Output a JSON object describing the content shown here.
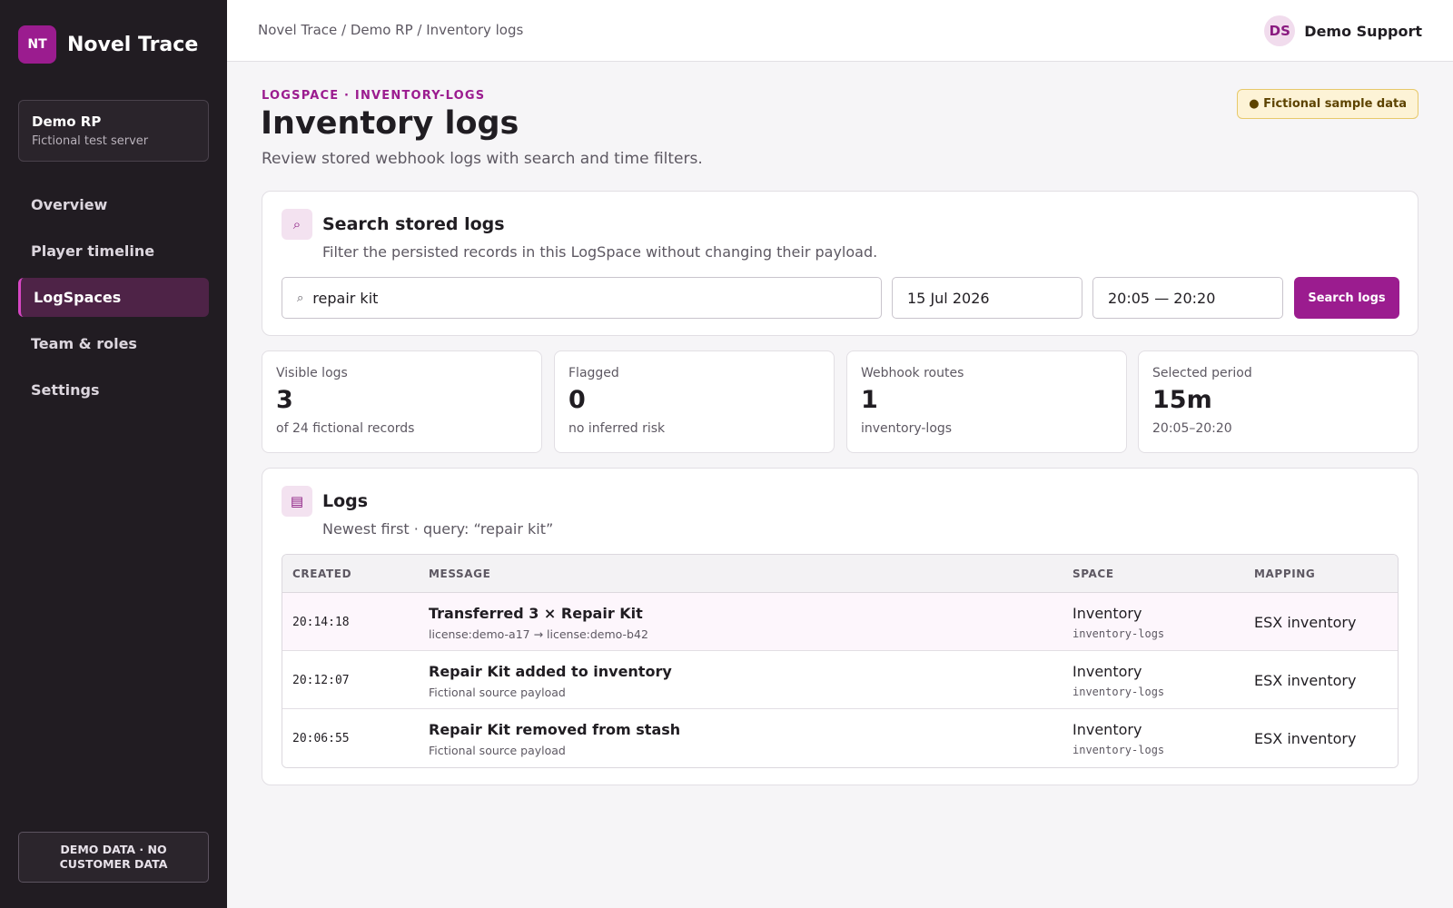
{
  "brand": {
    "logo": "NT",
    "name": "Novel Trace"
  },
  "server": {
    "name": "Demo RP",
    "subtitle": "Fictional test server"
  },
  "nav": [
    {
      "label": "Overview",
      "active": false
    },
    {
      "label": "Player timeline",
      "active": false
    },
    {
      "label": "LogSpaces",
      "active": true
    },
    {
      "label": "Team & roles",
      "active": false
    },
    {
      "label": "Settings",
      "active": false
    }
  ],
  "footer_badge": "DEMO DATA · NO CUSTOMER DATA",
  "breadcrumb": "Novel Trace / Demo RP / Inventory logs",
  "user": {
    "initials": "DS",
    "name": "Demo Support"
  },
  "header": {
    "eyebrow": "LOGSPACE · INVENTORY-LOGS",
    "title": "Inventory logs",
    "subtitle": "Review stored webhook logs with search and time filters.",
    "badge": "● Fictional sample data"
  },
  "search": {
    "icon": "search-icon",
    "title": "Search stored logs",
    "subtitle": "Filter the persisted records in this LogSpace without changing their payload.",
    "query_value": "repair kit",
    "date_value": "15 Jul 2026",
    "time_value": "20:05 — 20:20",
    "button_label": "Search logs"
  },
  "stats": [
    {
      "label": "Visible logs",
      "value": "3",
      "note": "of 24 fictional records"
    },
    {
      "label": "Flagged",
      "value": "0",
      "note": "no inferred risk"
    },
    {
      "label": "Webhook routes",
      "value": "1",
      "note": "inventory-logs"
    },
    {
      "label": "Selected period",
      "value": "15m",
      "note": "20:05–20:20"
    }
  ],
  "logs": {
    "icon": "list-icon",
    "title": "Logs",
    "subtitle": "Newest first · query: “repair kit”",
    "columns": [
      "CREATED",
      "MESSAGE",
      "SPACE",
      "MAPPING"
    ],
    "rows": [
      {
        "created": "20:14:18",
        "message": "Transferred 3 × Repair Kit",
        "detail": "license:demo-a17 → license:demo-b42",
        "space": "Inventory",
        "space_route": "inventory-logs",
        "mapping": "ESX inventory"
      },
      {
        "created": "20:12:07",
        "message": "Repair Kit added to inventory",
        "detail": "Fictional source payload",
        "space": "Inventory",
        "space_route": "inventory-logs",
        "mapping": "ESX inventory"
      },
      {
        "created": "20:06:55",
        "message": "Repair Kit removed from stash",
        "detail": "Fictional source payload",
        "space": "Inventory",
        "space_route": "inventory-logs",
        "mapping": "ESX inventory"
      }
    ]
  },
  "colors": {
    "accent": "#9b1c8f",
    "sidebar_bg": "#211c22",
    "badge_bg": "#fdf3d6"
  }
}
